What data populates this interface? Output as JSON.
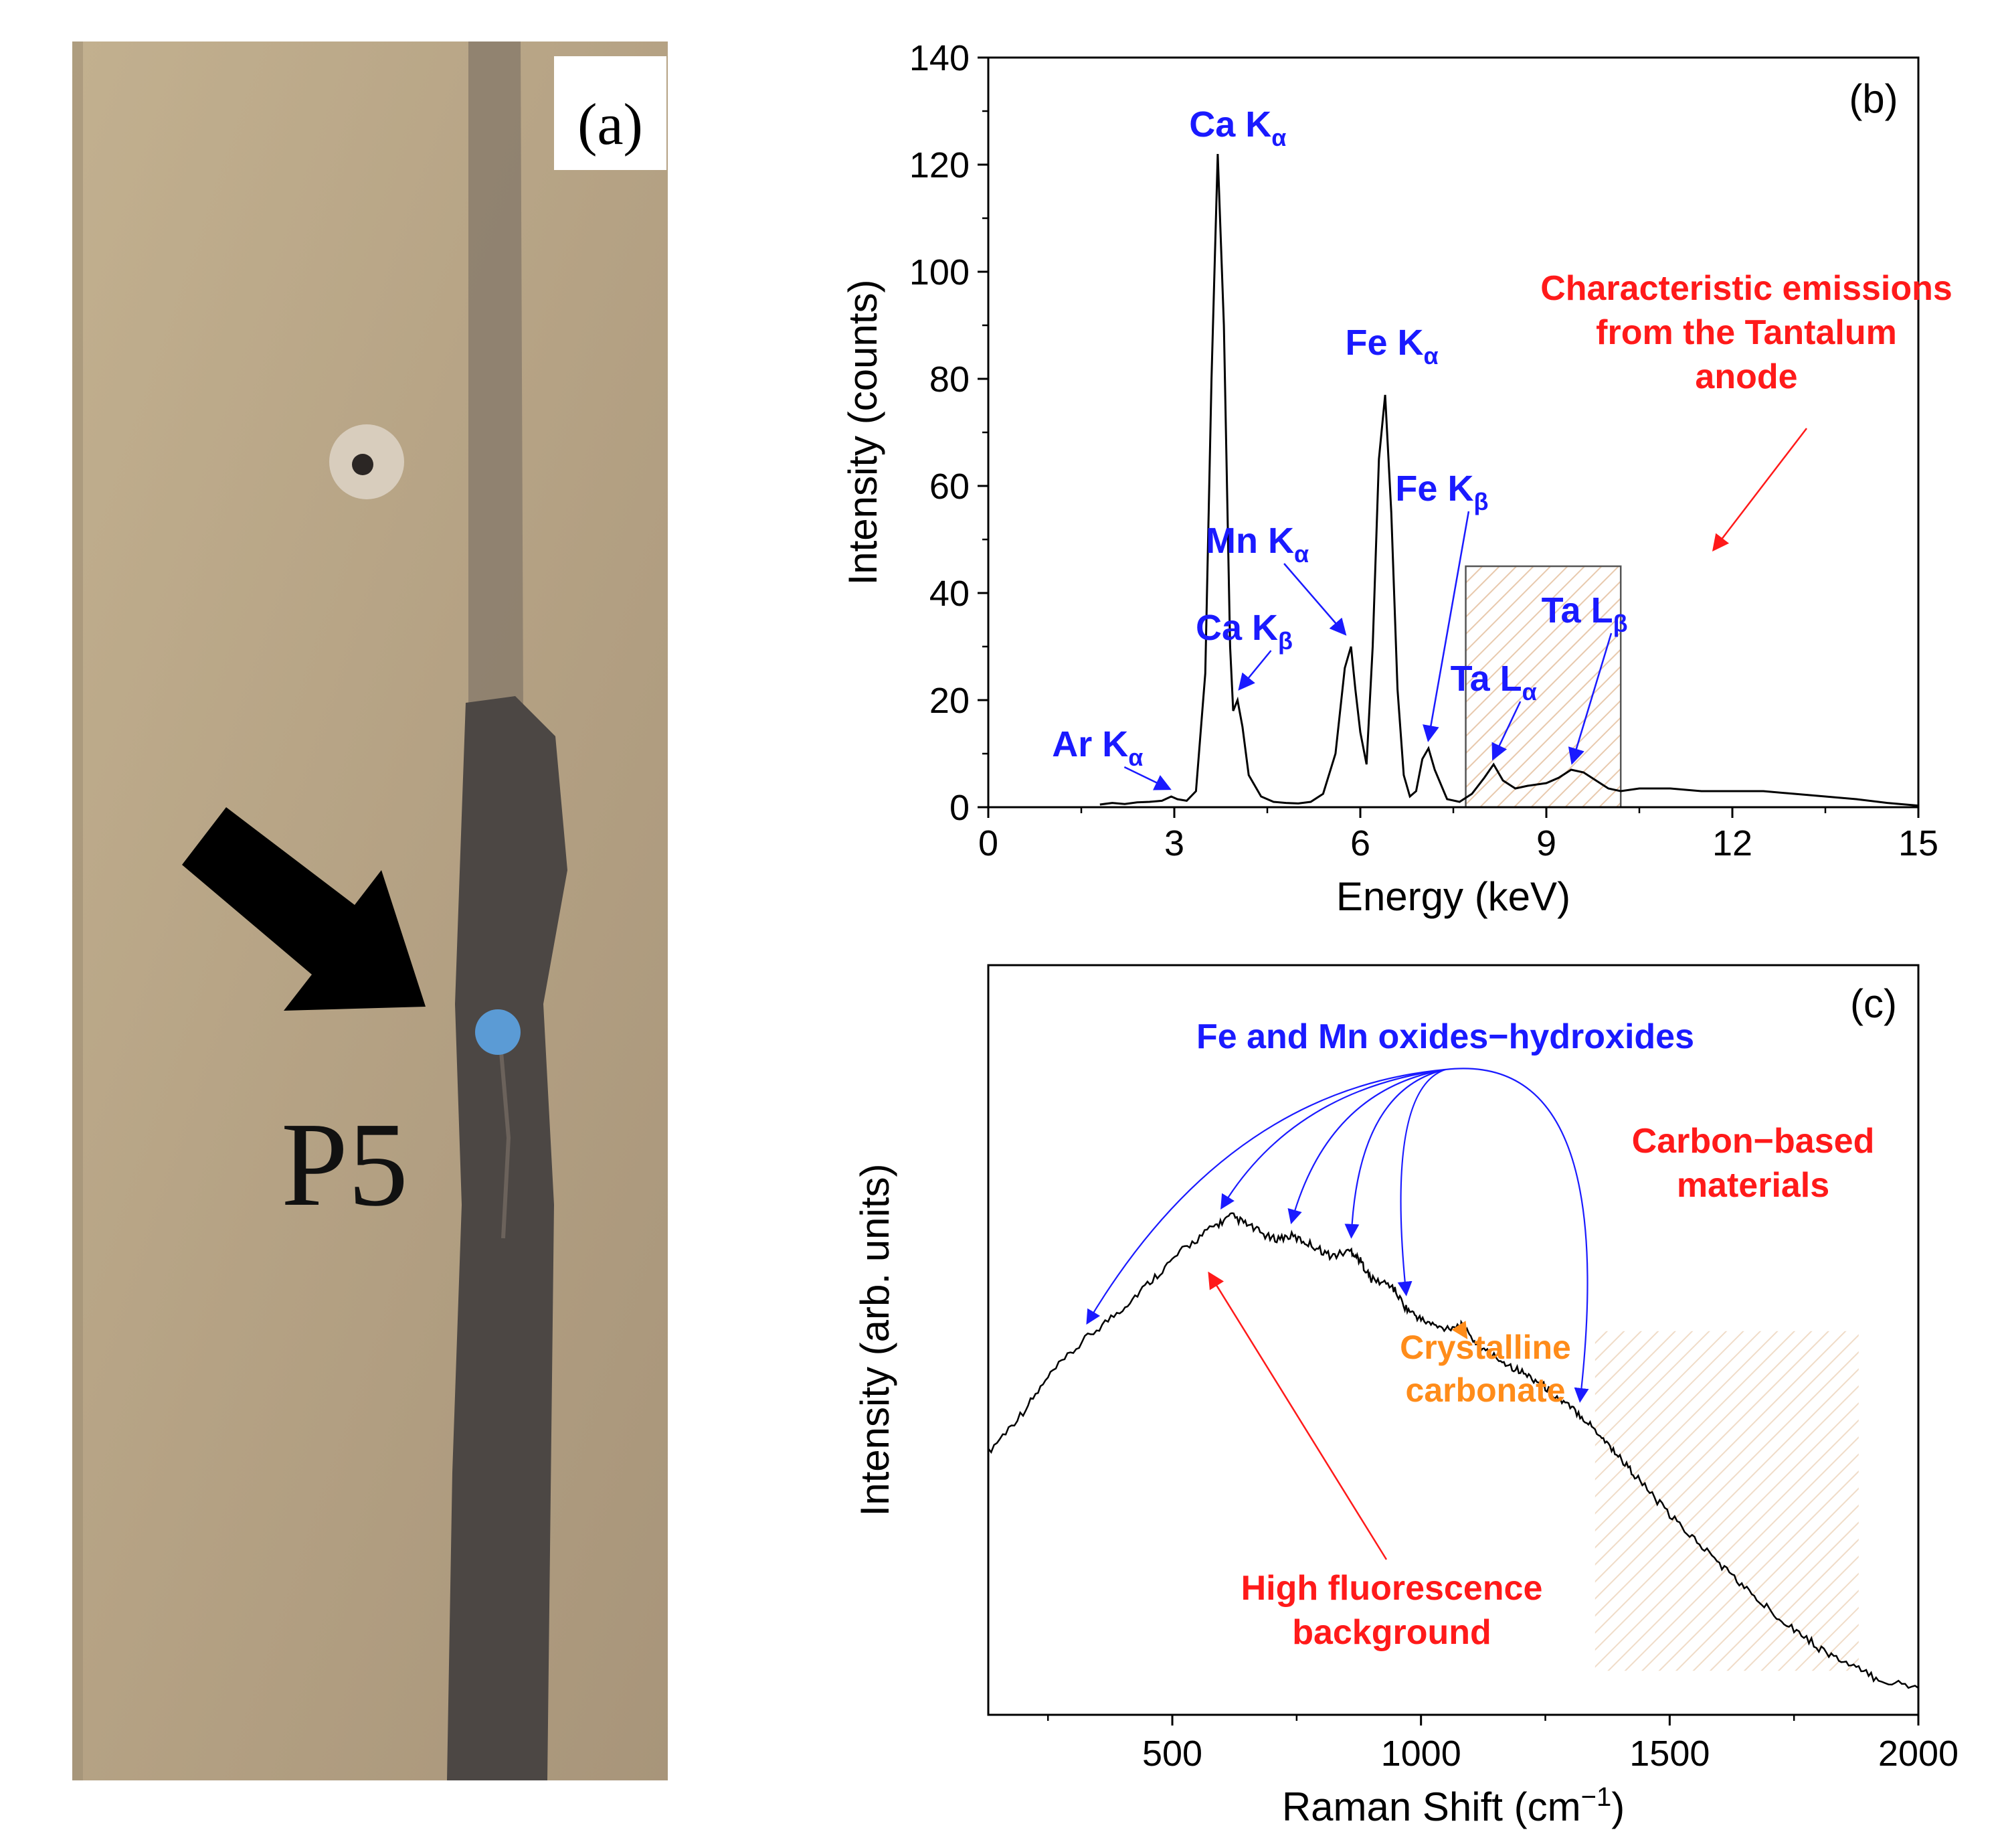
{
  "panel_a": {
    "panel_label": "(a)",
    "point_label": "P5",
    "colors": {
      "stone": "#b8a58a",
      "stripe": "#4a4542",
      "point": "#5b9bd5",
      "arrow": "#000000"
    }
  },
  "chart_data": [
    {
      "type": "line",
      "panel_label": "(b)",
      "xlabel": "Energy (keV)",
      "ylabel": "Intensity (counts)",
      "xlim": [
        0,
        15
      ],
      "ylim": [
        0,
        140
      ],
      "xticks": [
        0,
        3,
        6,
        9,
        12,
        15
      ],
      "yticks": [
        0,
        20,
        40,
        60,
        80,
        100,
        120,
        140
      ],
      "grid": false,
      "colors": {
        "line": "#000000",
        "peak_labels": "#1a1aff",
        "anode_note": "#ff1a1a"
      },
      "series": [
        {
          "x": [
            1.8,
            2.0,
            2.2,
            2.4,
            2.6,
            2.8,
            2.95,
            3.05,
            3.2,
            3.35,
            3.5,
            3.6,
            3.7,
            3.8,
            3.9,
            3.95,
            4.02,
            4.1,
            4.2,
            4.4,
            4.6,
            4.8,
            5.0,
            5.2,
            5.4,
            5.6,
            5.75,
            5.85,
            5.92,
            6.0,
            6.1,
            6.2,
            6.3,
            6.4,
            6.5,
            6.6,
            6.7,
            6.8,
            6.9,
            7.0,
            7.1,
            7.2,
            7.4,
            7.6,
            7.8,
            8.0,
            8.15,
            8.3,
            8.5,
            8.7,
            9.0,
            9.2,
            9.4,
            9.6,
            9.8,
            10.0,
            10.2,
            10.5,
            11.0,
            11.5,
            12.0,
            12.5,
            13.0,
            13.5,
            14.0,
            14.5,
            15.0
          ],
          "y": [
            0.5,
            0.8,
            0.6,
            0.9,
            1.0,
            1.2,
            2.0,
            1.5,
            1.2,
            3.0,
            25,
            80,
            122,
            90,
            30,
            18,
            20,
            15,
            6,
            2.0,
            1.0,
            0.8,
            0.7,
            1.0,
            2.5,
            10,
            26,
            30,
            22,
            14,
            8,
            30,
            65,
            77,
            55,
            22,
            6,
            2.0,
            3.0,
            9,
            11,
            7,
            1.5,
            1.0,
            2.5,
            5.5,
            8,
            5,
            3.5,
            4.0,
            4.5,
            5.5,
            7.0,
            6.5,
            5.0,
            3.5,
            3.0,
            3.5,
            3.5,
            3.0,
            3.0,
            3.0,
            2.5,
            2.0,
            1.5,
            0.8,
            0.3
          ]
        }
      ],
      "annotations": [
        {
          "element": "Ca",
          "line": "α",
          "x": 3.7,
          "y": 122
        },
        {
          "element": "Ca",
          "line": "β",
          "x": 4.02,
          "y": 20
        },
        {
          "element": "Ar",
          "line": "α",
          "x": 2.95,
          "y": 2
        },
        {
          "element": "Mn",
          "line": "α",
          "x": 5.85,
          "y": 30
        },
        {
          "element": "Fe",
          "line": "α",
          "x": 6.4,
          "y": 77
        },
        {
          "element": "Fe",
          "line": "β",
          "x": 7.1,
          "y": 11
        },
        {
          "element": "Ta",
          "line": "α",
          "x": 8.15,
          "y": 8
        },
        {
          "element": "Ta",
          "line": "β",
          "x": 9.4,
          "y": 7
        }
      ],
      "label_prefix": "K",
      "ta_prefix": "L",
      "anode_box": {
        "x": [
          7.7,
          10.2
        ],
        "y": [
          0,
          45
        ]
      },
      "anode_note": [
        "Characteristic emissions",
        "from the Tantalum",
        "anode"
      ]
    },
    {
      "type": "line",
      "panel_label": "(c)",
      "xlabel": "Raman Shift (cm",
      "xlabel_sup": "−1",
      "xlabel_end": ")",
      "ylabel": "Intensity (arb. units)",
      "xlim": [
        130,
        2000
      ],
      "ylim": [
        0,
        100
      ],
      "xticks": [
        500,
        1000,
        1500,
        2000
      ],
      "yticks_shown": false,
      "grid": false,
      "colors": {
        "line": "#000000",
        "oxides": "#1a1aff",
        "carbonate": "#ff8c1a",
        "fluorescence": "#ff1a1a",
        "carbon": "#ff1a1a"
      },
      "series": [
        {
          "x": [
            130,
            200,
            260,
            330,
            400,
            460,
            520,
            580,
            620,
            660,
            700,
            740,
            780,
            820,
            860,
            880,
            900,
            940,
            970,
            1000,
            1040,
            1080,
            1090,
            1120,
            1160,
            1200,
            1240,
            1280,
            1320,
            1360,
            1400,
            1440,
            1500,
            1560,
            1620,
            1680,
            1740,
            1800,
            1860,
            1920,
            2000
          ],
          "y": [
            41,
            48,
            55,
            61,
            66,
            71,
            76,
            80,
            82,
            80,
            78,
            78.5,
            77,
            75,
            76,
            74,
            71,
            70,
            66,
            64,
            62.5,
            63,
            62,
            59,
            57,
            55,
            53,
            50,
            47.5,
            44,
            40,
            36,
            30,
            25,
            20,
            15,
            11,
            7,
            4,
            1.5,
            0
          ]
        }
      ],
      "oxides_label": "Fe and Mn oxides−hydroxides",
      "oxides_targets": [
        330,
        600,
        740,
        860,
        970,
        1320
      ],
      "carbonate_label": [
        "Crystalline",
        "carbonate"
      ],
      "carbonate_x": 1090,
      "fluorescence_label": [
        "High fluorescence",
        "background"
      ],
      "carbon_label": [
        "Carbon−based",
        "materials"
      ],
      "carbon_box": {
        "x": [
          1350,
          1880
        ],
        "y": [
          3,
          62
        ]
      }
    }
  ]
}
